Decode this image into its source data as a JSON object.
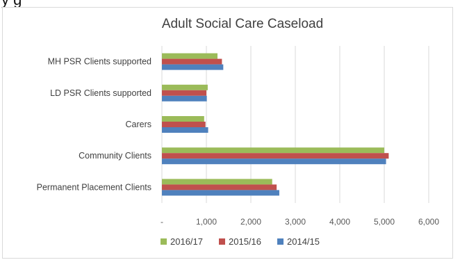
{
  "top_fragment": "y         g",
  "chart_data": {
    "type": "bar",
    "orientation": "horizontal",
    "title": "Adult Social Care Caseload",
    "xlabel": "",
    "ylabel": "",
    "xlim": [
      0,
      6000
    ],
    "xticks": [
      "-",
      "1,000",
      "2,000",
      "3,000",
      "4,000",
      "5,000",
      "6,000"
    ],
    "grid": true,
    "legend_position": "bottom",
    "categories": [
      "MH PSR Clients supported",
      "LD PSR Clients supported",
      "Carers",
      "Community Clients",
      "Permanent Placement Clients"
    ],
    "series": [
      {
        "name": "2016/17",
        "color": "#9bbb59",
        "values": [
          1250,
          1030,
          950,
          5000,
          2480
        ]
      },
      {
        "name": "2015/16",
        "color": "#c0504d",
        "values": [
          1350,
          1000,
          980,
          5100,
          2580
        ]
      },
      {
        "name": "2014/15",
        "color": "#4f81bd",
        "values": [
          1380,
          1010,
          1040,
          5040,
          2640
        ]
      }
    ]
  }
}
